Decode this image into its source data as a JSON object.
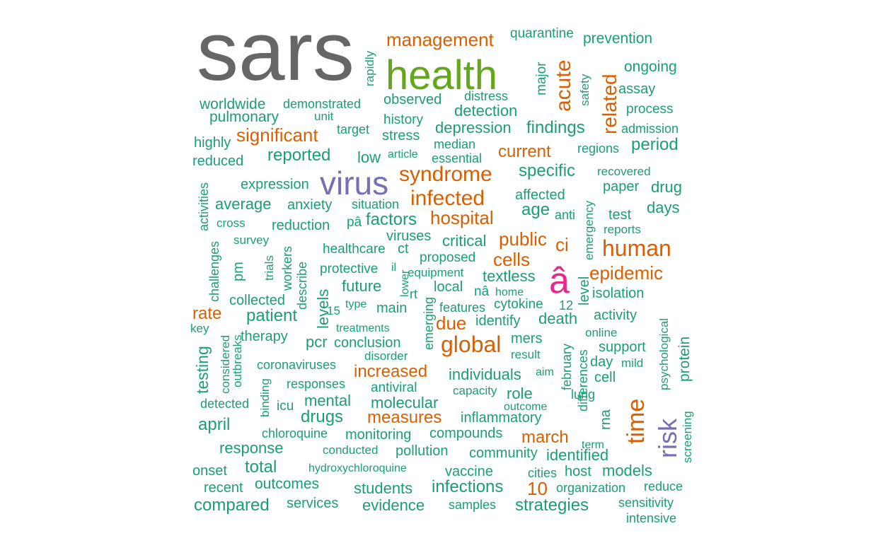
{
  "palette": {
    "gray": "#666666",
    "green": "#66a61e",
    "orange": "#d95f02",
    "purple": "#7570b3",
    "pink": "#e7298a",
    "teal": "#1b9e77"
  },
  "words": [
    {
      "text": "sars",
      "tier": 1,
      "color": "gray"
    },
    {
      "text": "health",
      "tier": 2,
      "color": "green"
    },
    {
      "text": "virus",
      "tier": 3,
      "color": "purple"
    },
    {
      "text": "â",
      "tier": 3,
      "color": "pink"
    },
    {
      "text": "risk",
      "tier": 4,
      "color": "purple"
    },
    {
      "text": "management",
      "tier": 5,
      "color": "orange"
    },
    {
      "text": "acute",
      "tier": 5,
      "color": "orange"
    },
    {
      "text": "related",
      "tier": 5,
      "color": "orange"
    },
    {
      "text": "significant",
      "tier": 5,
      "color": "orange"
    },
    {
      "text": "syndrome",
      "tier": 5,
      "color": "orange"
    },
    {
      "text": "infected",
      "tier": 5,
      "color": "orange"
    },
    {
      "text": "hospital",
      "tier": 5,
      "color": "orange"
    },
    {
      "text": "human",
      "tier": 5,
      "color": "orange"
    },
    {
      "text": "epidemic",
      "tier": 5,
      "color": "orange"
    },
    {
      "text": "public",
      "tier": 5,
      "color": "orange"
    },
    {
      "text": "cells",
      "tier": 5,
      "color": "orange"
    },
    {
      "text": "ci",
      "tier": 5,
      "color": "orange"
    },
    {
      "text": "global",
      "tier": 5,
      "color": "orange"
    },
    {
      "text": "due",
      "tier": 5,
      "color": "orange"
    },
    {
      "text": "increased",
      "tier": 5,
      "color": "orange"
    },
    {
      "text": "measures",
      "tier": 5,
      "color": "orange"
    },
    {
      "text": "march",
      "tier": 5,
      "color": "orange"
    },
    {
      "text": "time",
      "tier": 5,
      "color": "orange"
    },
    {
      "text": "current",
      "tier": 5,
      "color": "orange"
    },
    {
      "text": "rate",
      "tier": 5,
      "color": "orange"
    },
    {
      "text": "10",
      "tier": 5,
      "color": "orange"
    },
    {
      "text": "quarantine",
      "tier": 6,
      "color": "teal"
    },
    {
      "text": "prevention",
      "tier": 6,
      "color": "teal"
    },
    {
      "text": "rapidly",
      "tier": 6,
      "color": "teal"
    },
    {
      "text": "major",
      "tier": 6,
      "color": "teal"
    },
    {
      "text": "safety",
      "tier": 6,
      "color": "teal"
    },
    {
      "text": "ongoing",
      "tier": 6,
      "color": "teal"
    },
    {
      "text": "assay",
      "tier": 6,
      "color": "teal"
    },
    {
      "text": "worldwide",
      "tier": 6,
      "color": "teal"
    },
    {
      "text": "demonstrated",
      "tier": 6,
      "color": "teal"
    },
    {
      "text": "observed",
      "tier": 6,
      "color": "teal"
    },
    {
      "text": "distress",
      "tier": 6,
      "color": "teal"
    },
    {
      "text": "detection",
      "tier": 6,
      "color": "teal"
    },
    {
      "text": "process",
      "tier": 6,
      "color": "teal"
    },
    {
      "text": "pulmonary",
      "tier": 6,
      "color": "teal"
    },
    {
      "text": "unit",
      "tier": 6,
      "color": "teal"
    },
    {
      "text": "history",
      "tier": 6,
      "color": "teal"
    },
    {
      "text": "highly",
      "tier": 6,
      "color": "teal"
    },
    {
      "text": "target",
      "tier": 6,
      "color": "teal"
    },
    {
      "text": "stress",
      "tier": 6,
      "color": "teal"
    },
    {
      "text": "depression",
      "tier": 6,
      "color": "teal"
    },
    {
      "text": "findings",
      "tier": 6,
      "color": "teal"
    },
    {
      "text": "admission",
      "tier": 6,
      "color": "teal"
    },
    {
      "text": "median",
      "tier": 6,
      "color": "teal"
    },
    {
      "text": "regions",
      "tier": 6,
      "color": "teal"
    },
    {
      "text": "period",
      "tier": 6,
      "color": "teal"
    },
    {
      "text": "reduced",
      "tier": 6,
      "color": "teal"
    },
    {
      "text": "reported",
      "tier": 6,
      "color": "teal"
    },
    {
      "text": "low",
      "tier": 6,
      "color": "teal"
    },
    {
      "text": "article",
      "tier": 6,
      "color": "teal"
    },
    {
      "text": "essential",
      "tier": 6,
      "color": "teal"
    },
    {
      "text": "specific",
      "tier": 6,
      "color": "teal"
    },
    {
      "text": "recovered",
      "tier": 6,
      "color": "teal"
    },
    {
      "text": "activities",
      "tier": 6,
      "color": "teal"
    },
    {
      "text": "expression",
      "tier": 6,
      "color": "teal"
    },
    {
      "text": "affected",
      "tier": 6,
      "color": "teal"
    },
    {
      "text": "emergency",
      "tier": 6,
      "color": "teal"
    },
    {
      "text": "paper",
      "tier": 6,
      "color": "teal"
    },
    {
      "text": "drug",
      "tier": 6,
      "color": "teal"
    },
    {
      "text": "average",
      "tier": 6,
      "color": "teal"
    },
    {
      "text": "anxiety",
      "tier": 6,
      "color": "teal"
    },
    {
      "text": "situation",
      "tier": 6,
      "color": "teal"
    },
    {
      "text": "age",
      "tier": 6,
      "color": "teal"
    },
    {
      "text": "anti",
      "tier": 6,
      "color": "teal"
    },
    {
      "text": "test",
      "tier": 6,
      "color": "teal"
    },
    {
      "text": "days",
      "tier": 6,
      "color": "teal"
    },
    {
      "text": "cross",
      "tier": 6,
      "color": "teal"
    },
    {
      "text": "reduction",
      "tier": 6,
      "color": "teal"
    },
    {
      "text": "pâ",
      "tier": 6,
      "color": "teal"
    },
    {
      "text": "factors",
      "tier": 6,
      "color": "teal"
    },
    {
      "text": "reports",
      "tier": 6,
      "color": "teal"
    },
    {
      "text": "survey",
      "tier": 6,
      "color": "teal"
    },
    {
      "text": "viruses",
      "tier": 6,
      "color": "teal"
    },
    {
      "text": "critical",
      "tier": 6,
      "color": "teal"
    },
    {
      "text": "challenges",
      "tier": 6,
      "color": "teal"
    },
    {
      "text": "pm",
      "tier": 6,
      "color": "teal"
    },
    {
      "text": "trials",
      "tier": 6,
      "color": "teal"
    },
    {
      "text": "workers",
      "tier": 6,
      "color": "teal"
    },
    {
      "text": "describe",
      "tier": 6,
      "color": "teal"
    },
    {
      "text": "healthcare",
      "tier": 6,
      "color": "teal"
    },
    {
      "text": "ct",
      "tier": 6,
      "color": "teal"
    },
    {
      "text": "proposed",
      "tier": 6,
      "color": "teal"
    },
    {
      "text": "il",
      "tier": 6,
      "color": "teal"
    },
    {
      "text": "protective",
      "tier": 6,
      "color": "teal"
    },
    {
      "text": "lower",
      "tier": 6,
      "color": "teal"
    },
    {
      "text": "equipment",
      "tier": 6,
      "color": "teal"
    },
    {
      "text": "textless",
      "tier": 6,
      "color": "teal"
    },
    {
      "text": "level",
      "tier": 6,
      "color": "teal"
    },
    {
      "text": "levels",
      "tier": 6,
      "color": "teal"
    },
    {
      "text": "future",
      "tier": 6,
      "color": "teal"
    },
    {
      "text": "rt",
      "tier": 6,
      "color": "teal"
    },
    {
      "text": "local",
      "tier": 6,
      "color": "teal"
    },
    {
      "text": "nâ",
      "tier": 6,
      "color": "teal"
    },
    {
      "text": "home",
      "tier": 6,
      "color": "teal"
    },
    {
      "text": "isolation",
      "tier": 6,
      "color": "teal"
    },
    {
      "text": "collected",
      "tier": 6,
      "color": "teal"
    },
    {
      "text": "type",
      "tier": 6,
      "color": "teal"
    },
    {
      "text": "main",
      "tier": 6,
      "color": "teal"
    },
    {
      "text": "emerging",
      "tier": 6,
      "color": "teal"
    },
    {
      "text": "features",
      "tier": 6,
      "color": "teal"
    },
    {
      "text": "cytokine",
      "tier": 6,
      "color": "teal"
    },
    {
      "text": "12",
      "tier": 6,
      "color": "teal"
    },
    {
      "text": "patient",
      "tier": 6,
      "color": "teal"
    },
    {
      "text": "15",
      "tier": 6,
      "color": "teal"
    },
    {
      "text": "identify",
      "tier": 6,
      "color": "teal"
    },
    {
      "text": "death",
      "tier": 6,
      "color": "teal"
    },
    {
      "text": "activity",
      "tier": 6,
      "color": "teal"
    },
    {
      "text": "psychological",
      "tier": 6,
      "color": "teal"
    },
    {
      "text": "key",
      "tier": 6,
      "color": "teal"
    },
    {
      "text": "treatments",
      "tier": 6,
      "color": "teal"
    },
    {
      "text": "online",
      "tier": 6,
      "color": "teal"
    },
    {
      "text": "protein",
      "tier": 6,
      "color": "teal"
    },
    {
      "text": "therapy",
      "tier": 6,
      "color": "teal"
    },
    {
      "text": "considered",
      "tier": 6,
      "color": "teal"
    },
    {
      "text": "outbreaks",
      "tier": 6,
      "color": "teal"
    },
    {
      "text": "testing",
      "tier": 6,
      "color": "teal"
    },
    {
      "text": "pcr",
      "tier": 6,
      "color": "teal"
    },
    {
      "text": "conclusion",
      "tier": 6,
      "color": "teal"
    },
    {
      "text": "mers",
      "tier": 6,
      "color": "teal"
    },
    {
      "text": "february",
      "tier": 6,
      "color": "teal"
    },
    {
      "text": "support",
      "tier": 6,
      "color": "teal"
    },
    {
      "text": "disorder",
      "tier": 6,
      "color": "teal"
    },
    {
      "text": "result",
      "tier": 6,
      "color": "teal"
    },
    {
      "text": "differences",
      "tier": 6,
      "color": "teal"
    },
    {
      "text": "day",
      "tier": 6,
      "color": "teal"
    },
    {
      "text": "mild",
      "tier": 6,
      "color": "teal"
    },
    {
      "text": "coronaviruses",
      "tier": 6,
      "color": "teal"
    },
    {
      "text": "individuals",
      "tier": 6,
      "color": "teal"
    },
    {
      "text": "aim",
      "tier": 6,
      "color": "teal"
    },
    {
      "text": "cell",
      "tier": 6,
      "color": "teal"
    },
    {
      "text": "binding",
      "tier": 6,
      "color": "teal"
    },
    {
      "text": "responses",
      "tier": 6,
      "color": "teal"
    },
    {
      "text": "antiviral",
      "tier": 6,
      "color": "teal"
    },
    {
      "text": "capacity",
      "tier": 6,
      "color": "teal"
    },
    {
      "text": "role",
      "tier": 6,
      "color": "teal"
    },
    {
      "text": "lung",
      "tier": 6,
      "color": "teal"
    },
    {
      "text": "detected",
      "tier": 6,
      "color": "teal"
    },
    {
      "text": "icu",
      "tier": 6,
      "color": "teal"
    },
    {
      "text": "mental",
      "tier": 6,
      "color": "teal"
    },
    {
      "text": "molecular",
      "tier": 6,
      "color": "teal"
    },
    {
      "text": "outcome",
      "tier": 6,
      "color": "teal"
    },
    {
      "text": "april",
      "tier": 6,
      "color": "teal"
    },
    {
      "text": "drugs",
      "tier": 6,
      "color": "teal"
    },
    {
      "text": "inflammatory",
      "tier": 6,
      "color": "teal"
    },
    {
      "text": "rna",
      "tier": 6,
      "color": "teal"
    },
    {
      "text": "screening",
      "tier": 6,
      "color": "teal"
    },
    {
      "text": "chloroquine",
      "tier": 6,
      "color": "teal"
    },
    {
      "text": "monitoring",
      "tier": 6,
      "color": "teal"
    },
    {
      "text": "compounds",
      "tier": 6,
      "color": "teal"
    },
    {
      "text": "term",
      "tier": 6,
      "color": "teal"
    },
    {
      "text": "response",
      "tier": 6,
      "color": "teal"
    },
    {
      "text": "conducted",
      "tier": 6,
      "color": "teal"
    },
    {
      "text": "pollution",
      "tier": 6,
      "color": "teal"
    },
    {
      "text": "community",
      "tier": 6,
      "color": "teal"
    },
    {
      "text": "identified",
      "tier": 6,
      "color": "teal"
    },
    {
      "text": "onset",
      "tier": 6,
      "color": "teal"
    },
    {
      "text": "total",
      "tier": 6,
      "color": "teal"
    },
    {
      "text": "hydroxychloroquine",
      "tier": 6,
      "color": "teal"
    },
    {
      "text": "vaccine",
      "tier": 6,
      "color": "teal"
    },
    {
      "text": "cities",
      "tier": 6,
      "color": "teal"
    },
    {
      "text": "host",
      "tier": 6,
      "color": "teal"
    },
    {
      "text": "models",
      "tier": 6,
      "color": "teal"
    },
    {
      "text": "recent",
      "tier": 6,
      "color": "teal"
    },
    {
      "text": "outcomes",
      "tier": 6,
      "color": "teal"
    },
    {
      "text": "students",
      "tier": 6,
      "color": "teal"
    },
    {
      "text": "infections",
      "tier": 6,
      "color": "teal"
    },
    {
      "text": "organization",
      "tier": 6,
      "color": "teal"
    },
    {
      "text": "reduce",
      "tier": 6,
      "color": "teal"
    },
    {
      "text": "compared",
      "tier": 6,
      "color": "teal"
    },
    {
      "text": "services",
      "tier": 6,
      "color": "teal"
    },
    {
      "text": "evidence",
      "tier": 6,
      "color": "teal"
    },
    {
      "text": "samples",
      "tier": 6,
      "color": "teal"
    },
    {
      "text": "strategies",
      "tier": 6,
      "color": "teal"
    },
    {
      "text": "sensitivity",
      "tier": 6,
      "color": "teal"
    },
    {
      "text": "intensive",
      "tier": 6,
      "color": "teal"
    }
  ]
}
